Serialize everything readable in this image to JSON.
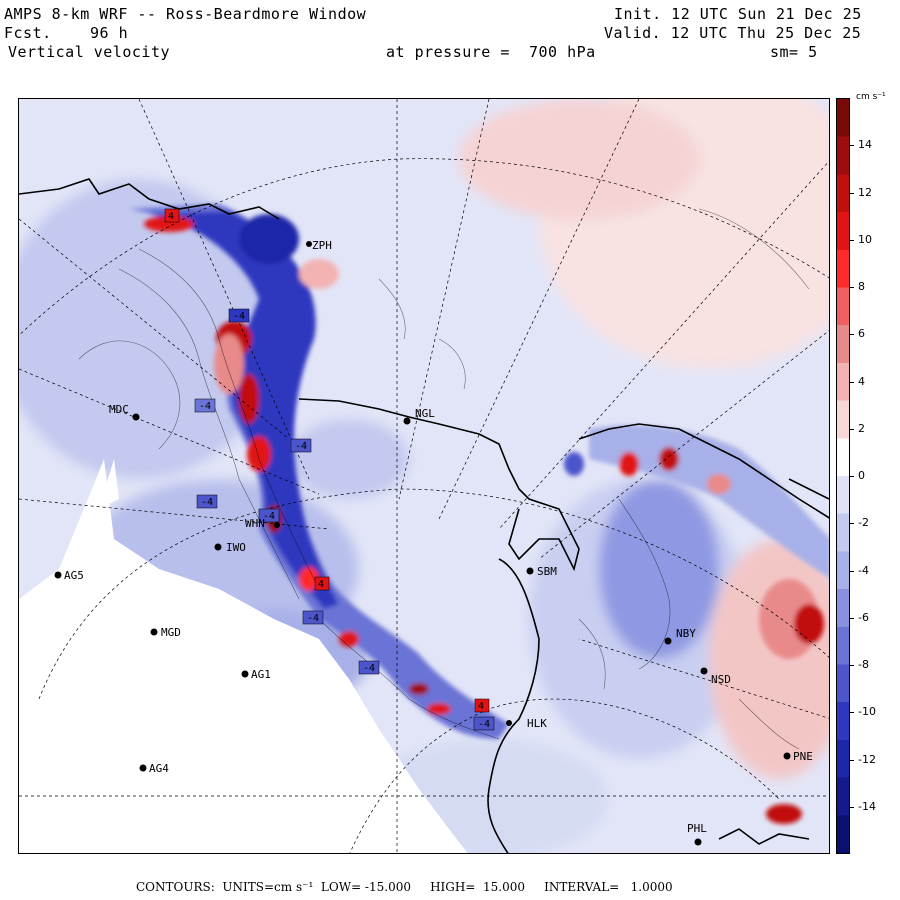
{
  "header": {
    "title": "AMPS 8-km WRF -- Ross-Beardmore Window",
    "init": "Init. 12 UTC Sun 21 Dec 25",
    "fcst_label": "Fcst.",
    "fcst_value": "96 h",
    "valid": "Valid. 12 UTC Thu 25 Dec 25",
    "field": "Vertical velocity",
    "level": "at pressure =  700 hPa",
    "smoothing": "sm= 5"
  },
  "colorbar": {
    "units": "cm s⁻¹",
    "ticks": [
      "14",
      "12",
      "10",
      "8",
      "6",
      "4",
      "2",
      "0",
      "-2",
      "-4",
      "-6",
      "-8",
      "-10",
      "-12",
      "-14"
    ],
    "colors_top_to_bottom": [
      "#7a0a0a",
      "#9e0d0d",
      "#c10f0f",
      "#e01414",
      "#ff2a2a",
      "#f06060",
      "#e98a8a",
      "#f3b3b3",
      "#f8d7d7",
      "#ffffff",
      "#dfe2f6",
      "#c3c9ef",
      "#a7b0e8",
      "#8791e0",
      "#6a73d6",
      "#4c55ca",
      "#2e37bf",
      "#1e26a8",
      "#141a8c",
      "#0b0f6e"
    ]
  },
  "stations": [
    {
      "id": "MDC",
      "label": "MDC"
    },
    {
      "id": "NGL",
      "label": "NGL"
    },
    {
      "id": "IWO",
      "label": "IWO"
    },
    {
      "id": "AG5",
      "label": "AG5"
    },
    {
      "id": "MGD",
      "label": "MGD"
    },
    {
      "id": "AG1",
      "label": "AG1"
    },
    {
      "id": "AG4",
      "label": "AG4"
    },
    {
      "id": "SBM",
      "label": "SBM"
    },
    {
      "id": "NBY",
      "label": "NBY"
    },
    {
      "id": "NSD",
      "label": "NSD"
    },
    {
      "id": "PNE",
      "label": "PNE"
    },
    {
      "id": "PHL",
      "label": "PHL"
    },
    {
      "id": "HLK",
      "label": "HLK"
    },
    {
      "id": "WHN",
      "label": "WHN"
    },
    {
      "id": "ZPH",
      "label": "ZPH"
    }
  ],
  "contour_labels": [
    "-4",
    "-4",
    "-4",
    "-4",
    "-4",
    "-4",
    "-4",
    "-4",
    "4",
    "4",
    "4"
  ],
  "footer": {
    "contours": "CONTOURS:",
    "units": "UNITS=cm s⁻¹",
    "low": "LOW= -15.000",
    "high": "HIGH=  15.000",
    "interval": "INTERVAL=   1.0000"
  }
}
